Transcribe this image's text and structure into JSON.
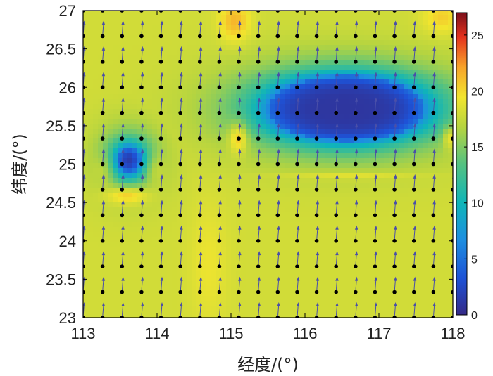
{
  "chart_data": {
    "type": "heatmap",
    "xlabel": "经度/(°)",
    "ylabel": "纬度/(°)",
    "xlim": [
      113,
      118
    ],
    "ylim": [
      23,
      27
    ],
    "x_ticks": [
      "113",
      "114",
      "115",
      "116",
      "117",
      "118"
    ],
    "y_ticks": [
      "23",
      "23.5",
      "24",
      "24.5",
      "25",
      "25.5",
      "26",
      "26.5",
      "27"
    ],
    "colorbar": {
      "range": [
        0,
        27
      ],
      "ticks": [
        "0",
        "5",
        "10",
        "15",
        "20",
        "25"
      ],
      "colormap": "parula/jet-like"
    },
    "background_value": 18,
    "features": [
      {
        "kind": "low",
        "lon": 116.55,
        "lat": 25.7,
        "value": 1
      },
      {
        "kind": "low",
        "lon": 113.62,
        "lat": 25.05,
        "value": 2
      },
      {
        "kind": "high",
        "lon": 113.6,
        "lat": 24.6,
        "value": 22
      },
      {
        "kind": "high",
        "lon": 115.1,
        "lat": 25.35,
        "value": 22
      },
      {
        "kind": "high",
        "lon": 115.05,
        "lat": 26.85,
        "value": 21
      },
      {
        "kind": "high",
        "lon": 117.95,
        "lat": 25.35,
        "value": 21
      },
      {
        "kind": "high",
        "lon": 117.9,
        "lat": 26.9,
        "value": 20
      }
    ],
    "vector_grid": {
      "lon_count": 20,
      "lat_count": 13,
      "direction": "north"
    }
  }
}
